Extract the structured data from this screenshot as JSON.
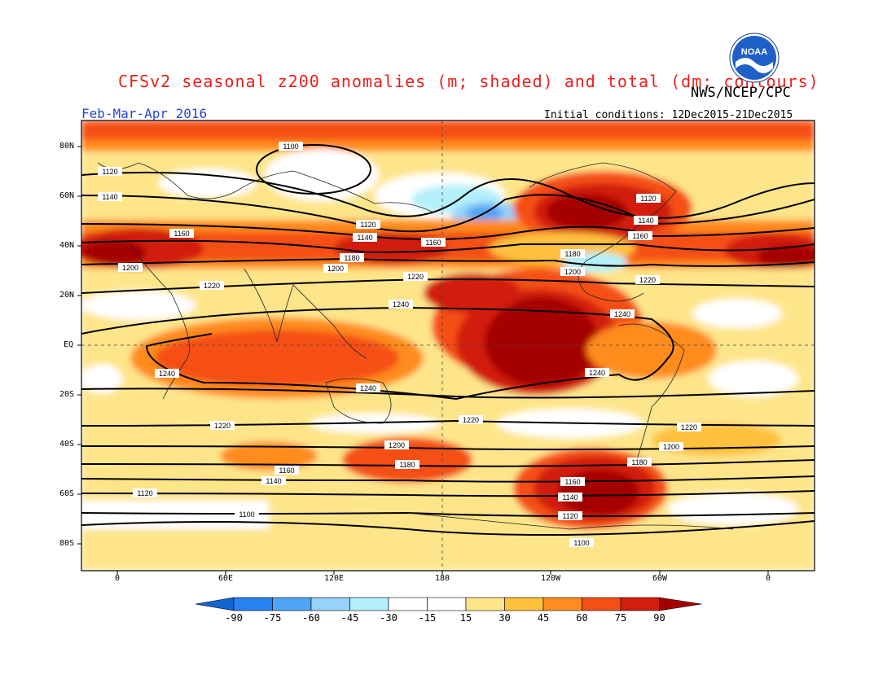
{
  "header": {
    "title": "CFSv2 seasonal z200 anomalies (m; shaded) and total (dm; contours)",
    "agency": "NWS/NCEP/CPC",
    "season": "Feb-Mar-Apr 2016",
    "initial_conditions": "Initial conditions: 12Dec2015-21Dec2015",
    "logo_text": "NOAA"
  },
  "map": {
    "lat_labels": [
      "80N",
      "60N",
      "40N",
      "20N",
      "EQ",
      "20S",
      "40S",
      "60S",
      "80S"
    ],
    "lon_labels": [
      "0",
      "60E",
      "120E",
      "180",
      "120W",
      "60W",
      "0"
    ],
    "contour_labels": [
      "1100",
      "1120",
      "1140",
      "1160",
      "1180",
      "1200",
      "1220",
      "1240"
    ],
    "colors": {
      "neg_90": "#1464d2",
      "neg_75": "#2882f0",
      "neg_60": "#50a5f5",
      "neg_45": "#96d2fa",
      "neg_30": "#b4f0fa",
      "neg_15": "#ffffff",
      "pos_15": "#ffffff",
      "pos_30": "#fee58a",
      "pos_45": "#ffc03c",
      "pos_60": "#ff8c1e",
      "pos_75": "#f55014",
      "pos_90": "#d21e0a",
      "max": "#a50000"
    }
  },
  "colorbar": {
    "labels": [
      "-90",
      "-75",
      "-60",
      "-45",
      "-30",
      "-15",
      "15",
      "30",
      "45",
      "60",
      "75",
      "90"
    ],
    "colors": [
      "#1464d2",
      "#2882f0",
      "#50a5f5",
      "#96d2fa",
      "#b4f0fa",
      "#ffffff",
      "#ffffff",
      "#fee58a",
      "#ffc03c",
      "#ff8c1e",
      "#f55014",
      "#d21e0a",
      "#a50000"
    ]
  }
}
